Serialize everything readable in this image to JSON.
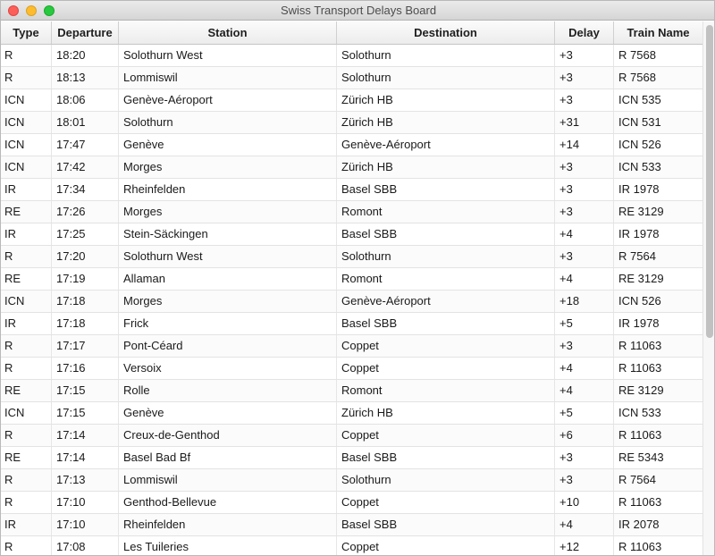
{
  "window": {
    "title": "Swiss Transport Delays Board"
  },
  "table": {
    "columns": [
      "Type",
      "Departure",
      "Station",
      "Destination",
      "Delay",
      "Train Name"
    ],
    "rows": [
      [
        "R",
        "18:20",
        "Solothurn West",
        "Solothurn",
        "+3",
        "R 7568"
      ],
      [
        "R",
        "18:13",
        "Lommiswil",
        "Solothurn",
        "+3",
        "R 7568"
      ],
      [
        "ICN",
        "18:06",
        "Genève-Aéroport",
        "Zürich HB",
        "+3",
        "ICN 535"
      ],
      [
        "ICN",
        "18:01",
        "Solothurn",
        "Zürich HB",
        "+31",
        "ICN 531"
      ],
      [
        "ICN",
        "17:47",
        "Genève",
        "Genève-Aéroport",
        "+14",
        "ICN 526"
      ],
      [
        "ICN",
        "17:42",
        "Morges",
        "Zürich HB",
        "+3",
        "ICN 533"
      ],
      [
        "IR",
        "17:34",
        "Rheinfelden",
        "Basel SBB",
        "+3",
        "IR 1978"
      ],
      [
        "RE",
        "17:26",
        "Morges",
        "Romont",
        "+3",
        "RE 3129"
      ],
      [
        "IR",
        "17:25",
        "Stein-Säckingen",
        "Basel SBB",
        "+4",
        "IR 1978"
      ],
      [
        "R",
        "17:20",
        "Solothurn West",
        "Solothurn",
        "+3",
        "R 7564"
      ],
      [
        "RE",
        "17:19",
        "Allaman",
        "Romont",
        "+4",
        "RE 3129"
      ],
      [
        "ICN",
        "17:18",
        "Morges",
        "Genève-Aéroport",
        "+18",
        "ICN 526"
      ],
      [
        "IR",
        "17:18",
        "Frick",
        "Basel SBB",
        "+5",
        "IR 1978"
      ],
      [
        "R",
        "17:17",
        "Pont-Céard",
        "Coppet",
        "+3",
        "R 11063"
      ],
      [
        "R",
        "17:16",
        "Versoix",
        "Coppet",
        "+4",
        "R 11063"
      ],
      [
        "RE",
        "17:15",
        "Rolle",
        "Romont",
        "+4",
        "RE 3129"
      ],
      [
        "ICN",
        "17:15",
        "Genève",
        "Zürich HB",
        "+5",
        "ICN 533"
      ],
      [
        "R",
        "17:14",
        "Creux-de-Genthod",
        "Coppet",
        "+6",
        "R 11063"
      ],
      [
        "RE",
        "17:14",
        "Basel Bad Bf",
        "Basel SBB",
        "+3",
        "RE 5343"
      ],
      [
        "R",
        "17:13",
        "Lommiswil",
        "Solothurn",
        "+3",
        "R 7564"
      ],
      [
        "R",
        "17:10",
        "Genthod-Bellevue",
        "Coppet",
        "+10",
        "R 11063"
      ],
      [
        "IR",
        "17:10",
        "Rheinfelden",
        "Basel SBB",
        "+4",
        "IR 2078"
      ],
      [
        "R",
        "17:08",
        "Les Tuileries",
        "Coppet",
        "+12",
        "R 11063"
      ]
    ]
  }
}
